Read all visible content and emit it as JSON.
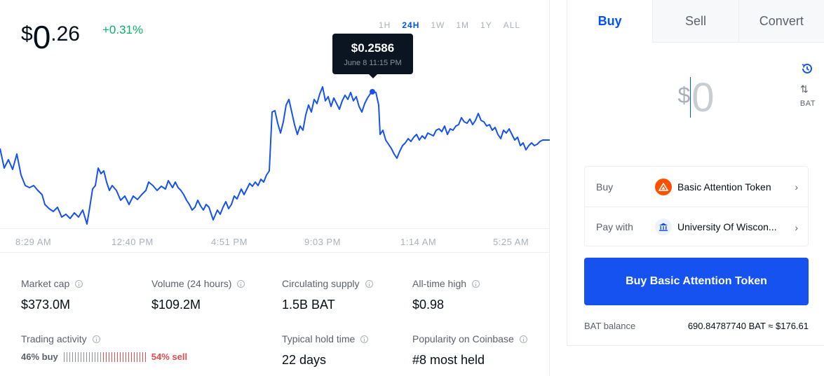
{
  "price": {
    "currency": "$",
    "integer": "0",
    "decimal": ".26",
    "change": "+0.31%",
    "change_color": "#05b169"
  },
  "ranges": [
    {
      "label": "1H",
      "active": false
    },
    {
      "label": "24H",
      "active": true
    },
    {
      "label": "1W",
      "active": false
    },
    {
      "label": "1M",
      "active": false
    },
    {
      "label": "1Y",
      "active": false
    },
    {
      "label": "ALL",
      "active": false
    }
  ],
  "tooltip": {
    "price": "$0.2586",
    "date": "June 8 11:15 PM"
  },
  "xaxis_labels": [
    "8:29 AM",
    "12:40 PM",
    "4:51 PM",
    "9:03 PM",
    "1:14 AM",
    "5:25 AM"
  ],
  "chart_line_color": "#1652f0",
  "stats": {
    "market_cap": {
      "label": "Market cap",
      "value": "$373.0M"
    },
    "volume": {
      "label": "Volume (24 hours)",
      "value": "$109.2M"
    },
    "circulating": {
      "label": "Circulating supply",
      "value": "1.5B BAT"
    },
    "ath": {
      "label": "All-time high",
      "value": "$0.98"
    },
    "trading": {
      "label": "Trading activity",
      "buy": "46% buy",
      "sell": "54% sell",
      "buy_fraction": 0.46
    },
    "hold_time": {
      "label": "Typical hold time",
      "value": "22 days"
    },
    "popularity": {
      "label": "Popularity on Coinbase",
      "value": "#8 most held"
    }
  },
  "trade": {
    "tabs": [
      "Buy",
      "Sell",
      "Convert"
    ],
    "amount_currency": "$",
    "amount_value": "0",
    "swap_label": "BAT",
    "buy_row": {
      "label": "Buy",
      "value": "Basic Attention Token"
    },
    "pay_row": {
      "label": "Pay with",
      "value": "University Of Wiscon..."
    },
    "button": "Buy Basic Attention Token",
    "balance_label": "BAT balance",
    "balance_value": "690.84787740 BAT  ≈ $176.61"
  }
}
